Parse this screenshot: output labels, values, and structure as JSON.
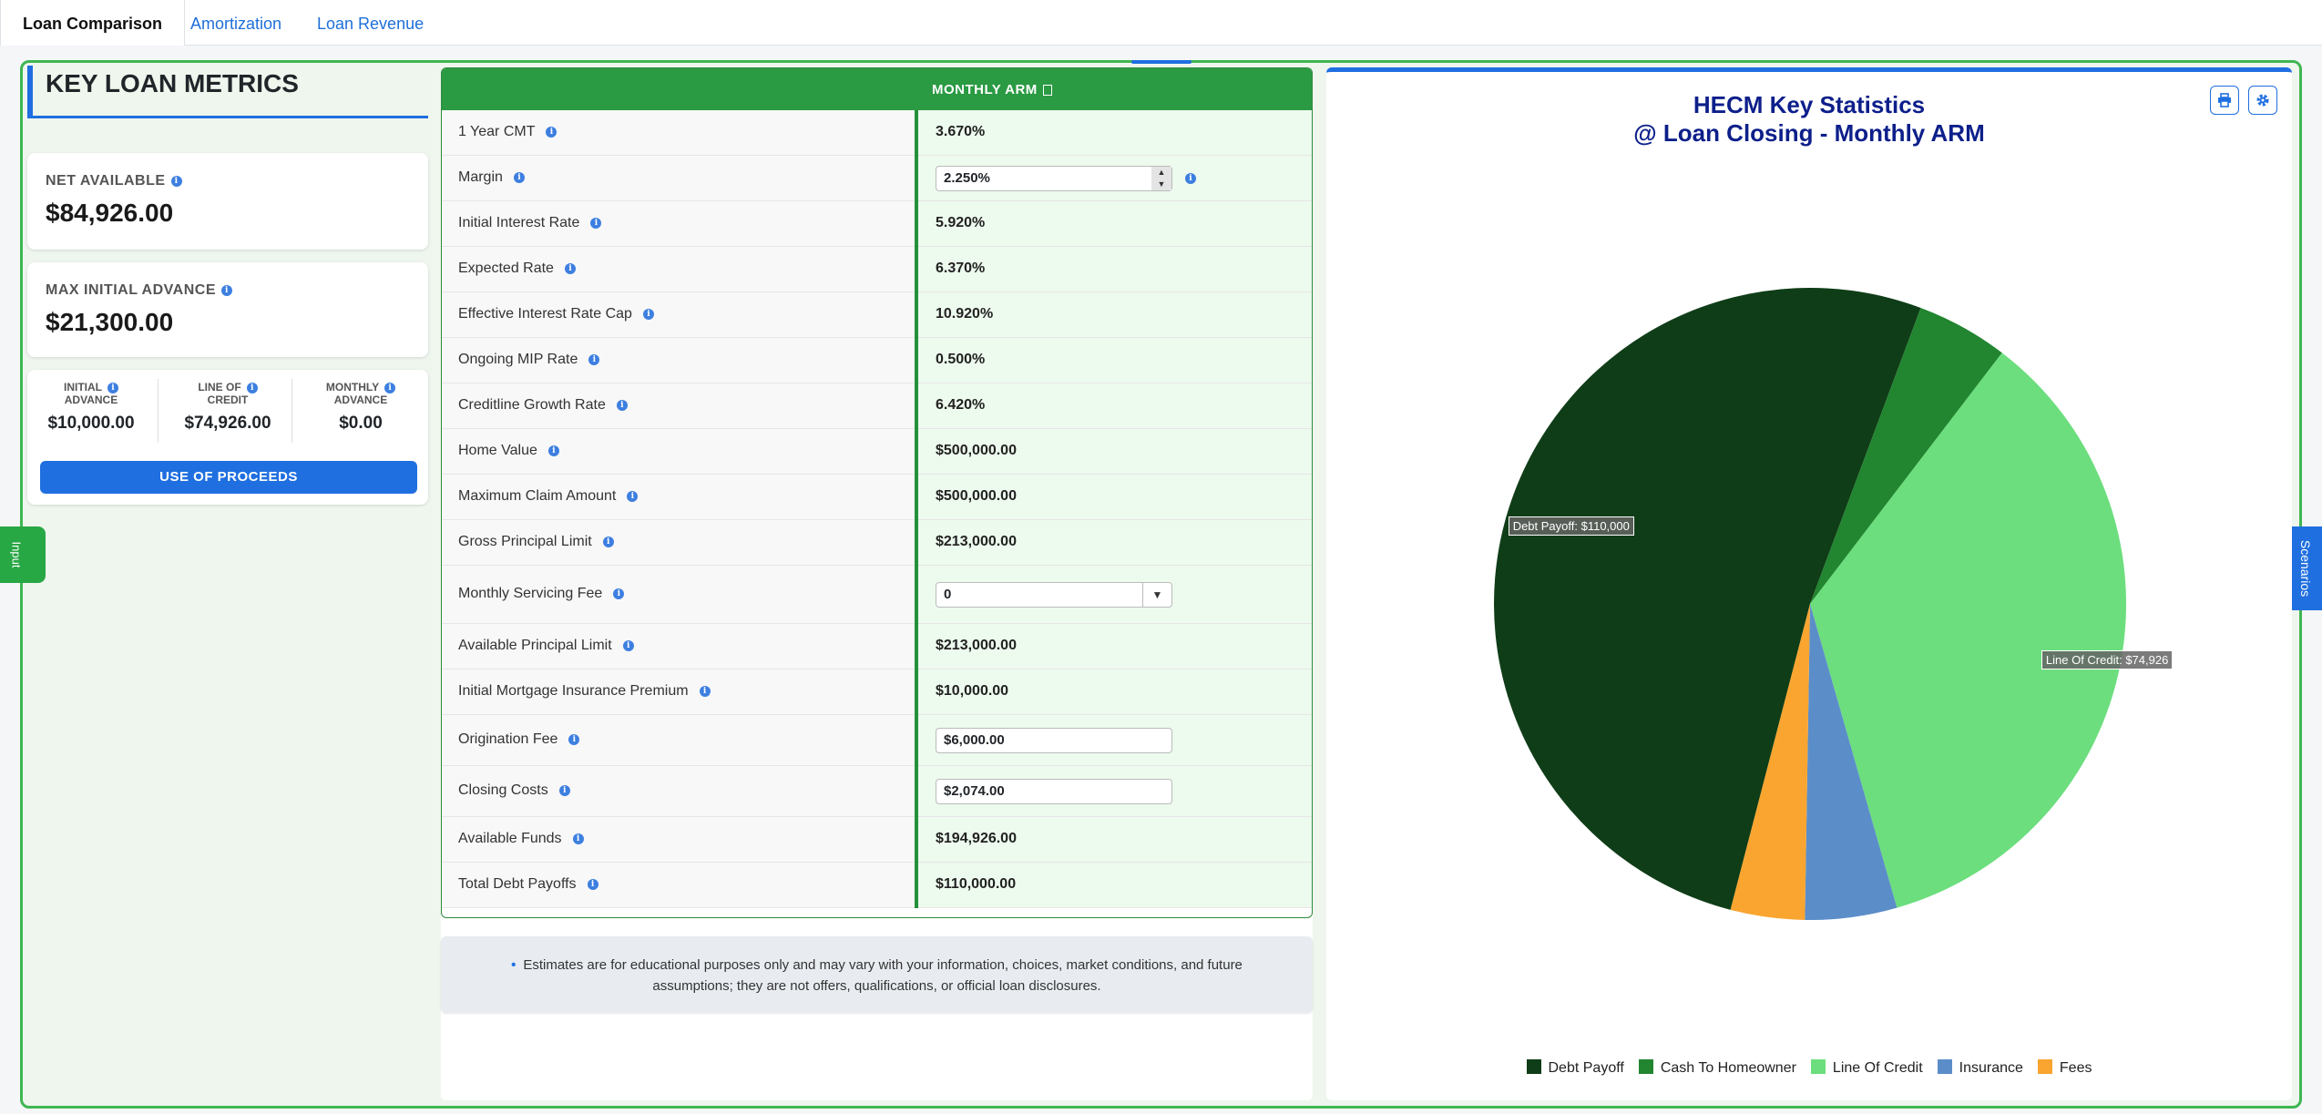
{
  "tabs": [
    {
      "label": "Loan Comparison",
      "active": true
    },
    {
      "label": "Amortization",
      "active": false
    },
    {
      "label": "Loan Revenue",
      "active": false
    }
  ],
  "metrics": {
    "title": "KEY LOAN METRICS",
    "net_available_label": "NET AVAILABLE",
    "net_available_value": "$84,926.00",
    "max_initial_label": "MAX INITIAL ADVANCE",
    "max_initial_value": "$21,300.00",
    "initial_advance_label_1": "INITIAL",
    "initial_advance_label_2": "ADVANCE",
    "initial_advance_value": "$10,000.00",
    "line_of_credit_label_1": "LINE OF",
    "line_of_credit_label_2": "CREDIT",
    "line_of_credit_value": "$74,926.00",
    "monthly_advance_label_1": "MONTHLY",
    "monthly_advance_label_2": "ADVANCE",
    "monthly_advance_value": "$0.00",
    "proceeds_button": "USE OF PROCEEDS"
  },
  "side_tabs": {
    "left": "Input",
    "right": "Scenarios"
  },
  "table": {
    "column_header": "MONTHLY ARM",
    "rows": [
      {
        "label": "1 Year CMT",
        "value": "3.670%",
        "kind": "text"
      },
      {
        "label": "Margin",
        "value": "2.250%",
        "kind": "spinner"
      },
      {
        "label": "Initial Interest Rate",
        "value": "5.920%",
        "kind": "text"
      },
      {
        "label": "Expected Rate",
        "value": "6.370%",
        "kind": "text"
      },
      {
        "label": "Effective Interest Rate Cap",
        "value": "10.920%",
        "kind": "text"
      },
      {
        "label": "Ongoing MIP Rate",
        "value": "0.500%",
        "kind": "text"
      },
      {
        "label": "Creditline Growth Rate",
        "value": "6.420%",
        "kind": "text"
      },
      {
        "label": "Home Value",
        "value": "$500,000.00",
        "kind": "text"
      },
      {
        "label": "Maximum Claim Amount",
        "value": "$500,000.00",
        "kind": "text"
      },
      {
        "label": "Gross Principal Limit",
        "value": "$213,000.00",
        "kind": "text"
      },
      {
        "label": "Monthly Servicing Fee",
        "value": "0",
        "kind": "select"
      },
      {
        "label": "Available Principal Limit",
        "value": "$213,000.00",
        "kind": "text"
      },
      {
        "label": "Initial Mortgage Insurance Premium",
        "value": "$10,000.00",
        "kind": "text"
      },
      {
        "label": "Origination Fee",
        "value": "$6,000.00",
        "kind": "input"
      },
      {
        "label": "Closing Costs",
        "value": "$2,074.00",
        "kind": "input"
      },
      {
        "label": "Available Funds",
        "value": "$194,926.00",
        "kind": "text"
      },
      {
        "label": "Total Debt Payoffs",
        "value": "$110,000.00",
        "kind": "text"
      }
    ]
  },
  "disclaimer": {
    "bullet": "•",
    "text": "Estimates are for educational purposes only and may vary with your information, choices, market conditions, and future assumptions; they are not offers, qualifications, or official loan disclosures."
  },
  "chart_data": {
    "type": "pie",
    "title_line1": "HECM Key Statistics",
    "title_line2": "@ Loan Closing - Monthly ARM",
    "series": [
      {
        "name": "Debt Payoff",
        "value": 110000,
        "color": "#0f3d17"
      },
      {
        "name": "Cash To Homeowner",
        "value": 10000,
        "color": "#228530"
      },
      {
        "name": "Line Of Credit",
        "value": 74926,
        "color": "#6cde7d"
      },
      {
        "name": "Insurance",
        "value": 10000,
        "color": "#5b8ec9"
      },
      {
        "name": "Fees",
        "value": 8074,
        "color": "#f9a530"
      }
    ],
    "labels": [
      {
        "text": "Debt Payoff: $110,000"
      },
      {
        "text": "Line Of Credit: $74,926"
      }
    ],
    "legend_position": "bottom"
  },
  "icons": {
    "print": "printer-icon",
    "settings": "gear-icon",
    "info": "info-icon"
  }
}
